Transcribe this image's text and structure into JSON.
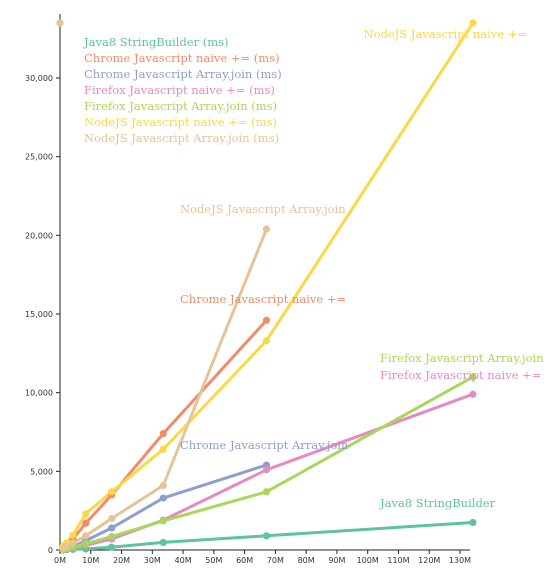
{
  "chart_data": {
    "type": "line",
    "title": "",
    "xlabel": "",
    "ylabel": "",
    "xlim": [
      0,
      135000000
    ],
    "ylim": [
      0,
      35000
    ],
    "grid": false,
    "legend_placement": "top-left",
    "x_ticks": [
      {
        "value": 0,
        "label": "0M"
      },
      {
        "value": 10000000,
        "label": "10M"
      },
      {
        "value": 20000000,
        "label": "20M"
      },
      {
        "value": 30000000,
        "label": "30M"
      },
      {
        "value": 40000000,
        "label": "40M"
      },
      {
        "value": 50000000,
        "label": "50M"
      },
      {
        "value": 60000000,
        "label": "60M"
      },
      {
        "value": 70000000,
        "label": "70M"
      },
      {
        "value": 80000000,
        "label": "80M"
      },
      {
        "value": 90000000,
        "label": "90M"
      },
      {
        "value": 100000000,
        "label": "100M"
      },
      {
        "value": 110000000,
        "label": "110M"
      },
      {
        "value": 120000000,
        "label": "120M"
      },
      {
        "value": 130000000,
        "label": "130M"
      }
    ],
    "y_ticks": [
      {
        "value": 0,
        "label": "0"
      },
      {
        "value": 5000,
        "label": "5,000"
      },
      {
        "value": 10000,
        "label": "10,000"
      },
      {
        "value": 15000,
        "label": "15,000"
      },
      {
        "value": 20000,
        "label": "20,000"
      },
      {
        "value": 25000,
        "label": "25,000"
      },
      {
        "value": 30000,
        "label": "30,000"
      }
    ],
    "series": [
      {
        "name": "Java8 StringBuilder (ms)",
        "end_label": "Java8 StringBuilder",
        "color": "#5ec49a",
        "points": [
          [
            1048576,
            10
          ],
          [
            2097152,
            20
          ],
          [
            4194304,
            40
          ],
          [
            8388608,
            70
          ],
          [
            16777216,
            180
          ],
          [
            33554432,
            480
          ],
          [
            67108864,
            900
          ],
          [
            134217728,
            1750
          ]
        ]
      },
      {
        "name": "Chrome Javascript naive += (ms)",
        "end_label": "Chrome Javascript naive +=",
        "color": "#f28b6a",
        "points": [
          [
            1048576,
            150
          ],
          [
            2097152,
            300
          ],
          [
            4194304,
            700
          ],
          [
            8388608,
            1700
          ],
          [
            16777216,
            3500
          ],
          [
            33554432,
            7400
          ],
          [
            67108864,
            14600
          ]
        ]
      },
      {
        "name": "Chrome Javascript Array.join (ms)",
        "end_label": "Chrome Javascript Array.join",
        "color": "#8e9fcf",
        "points": [
          [
            1048576,
            30
          ],
          [
            2097152,
            80
          ],
          [
            4194304,
            200
          ],
          [
            8388608,
            600
          ],
          [
            16777216,
            1400
          ],
          [
            33554432,
            3300
          ],
          [
            67108864,
            5400
          ]
        ]
      },
      {
        "name": "Firefox Javascript naive += (ms)",
        "end_label": "Firefox Javascript naive +=",
        "color": "#e58ac4",
        "points": [
          [
            1048576,
            20
          ],
          [
            2097152,
            50
          ],
          [
            4194304,
            120
          ],
          [
            8388608,
            300
          ],
          [
            16777216,
            700
          ],
          [
            33554432,
            1900
          ],
          [
            67108864,
            5100
          ],
          [
            134217728,
            9900
          ]
        ]
      },
      {
        "name": "Firefox Javascript Array.join (ms)",
        "end_label": "Firefox Javascript Array.join",
        "color": "#a8d859",
        "points": [
          [
            1048576,
            30
          ],
          [
            2097152,
            70
          ],
          [
            4194304,
            160
          ],
          [
            8388608,
            400
          ],
          [
            16777216,
            850
          ],
          [
            33554432,
            1850
          ],
          [
            67108864,
            3700
          ],
          [
            134217728,
            11000
          ]
        ]
      },
      {
        "name": "NodeJS Javascript naive += (ms)",
        "end_label": "NodeJS Javascript naive +=",
        "color": "#fbd844",
        "points": [
          [
            1048576,
            250
          ],
          [
            2097152,
            450
          ],
          [
            4194304,
            950
          ],
          [
            8388608,
            2300
          ],
          [
            16777216,
            3700
          ],
          [
            33554432,
            6400
          ],
          [
            67108864,
            13300
          ],
          [
            134217728,
            33500
          ]
        ]
      },
      {
        "name": "NodeJS Javascript Array.join (ms)",
        "end_label": "NodeJS Javascript Array.join",
        "color": "#e5c496",
        "points": [
          [
            1048576,
            100
          ],
          [
            2097152,
            200
          ],
          [
            4194304,
            450
          ],
          [
            8388608,
            900
          ],
          [
            16777216,
            2000
          ],
          [
            33554432,
            4100
          ],
          [
            67108864,
            20400
          ]
        ]
      }
    ],
    "outlier_point": {
      "series": "NodeJS Javascript Array.join (ms)",
      "x": 0,
      "y": 33500
    }
  }
}
